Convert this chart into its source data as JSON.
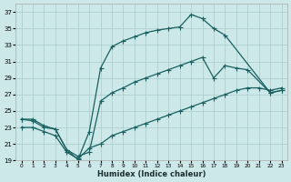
{
  "xlabel": "Humidex (Indice chaleur)",
  "bg_color": "#cce8e8",
  "grid_color": "#aacccc",
  "line_color": "#1a6060",
  "xlim": [
    -0.5,
    23.5
  ],
  "ylim": [
    19,
    38
  ],
  "yticks": [
    19,
    21,
    23,
    25,
    27,
    29,
    31,
    33,
    35,
    37
  ],
  "xticks": [
    0,
    1,
    2,
    3,
    4,
    5,
    6,
    7,
    8,
    9,
    10,
    11,
    12,
    13,
    14,
    15,
    16,
    17,
    18,
    19,
    20,
    21,
    22,
    23
  ],
  "line1_x": [
    0,
    1,
    2,
    3,
    4,
    5,
    6,
    7,
    8,
    9,
    10,
    11,
    12,
    13,
    14,
    15,
    16,
    17,
    18,
    22,
    23
  ],
  "line1_y": [
    24.0,
    24.0,
    23.2,
    22.8,
    20.3,
    19.1,
    22.5,
    30.2,
    32.8,
    33.5,
    34.0,
    34.5,
    34.8,
    35.0,
    35.2,
    36.7,
    36.2,
    35.0,
    34.2,
    27.2,
    27.5
  ],
  "line2_x": [
    0,
    1,
    2,
    3,
    4,
    5,
    6,
    7,
    8,
    9,
    10,
    11,
    12,
    13,
    14,
    15,
    16,
    17,
    18,
    19,
    20,
    22,
    23
  ],
  "line2_y": [
    24.0,
    23.8,
    23.0,
    22.8,
    20.3,
    19.5,
    20.0,
    26.2,
    27.2,
    27.8,
    28.5,
    29.0,
    29.5,
    30.0,
    30.5,
    31.0,
    31.5,
    29.0,
    30.5,
    30.2,
    30.0,
    27.2,
    27.5
  ],
  "line3_x": [
    0,
    1,
    2,
    3,
    4,
    5,
    6,
    7,
    8,
    9,
    10,
    11,
    12,
    13,
    14,
    15,
    16,
    17,
    18,
    19,
    20,
    21,
    22,
    23
  ],
  "line3_y": [
    23.0,
    23.0,
    22.5,
    22.0,
    20.0,
    19.2,
    20.5,
    21.0,
    22.0,
    22.5,
    23.0,
    23.5,
    24.0,
    24.5,
    25.0,
    25.5,
    26.0,
    26.5,
    27.0,
    27.5,
    27.8,
    27.8,
    27.5,
    27.8
  ]
}
